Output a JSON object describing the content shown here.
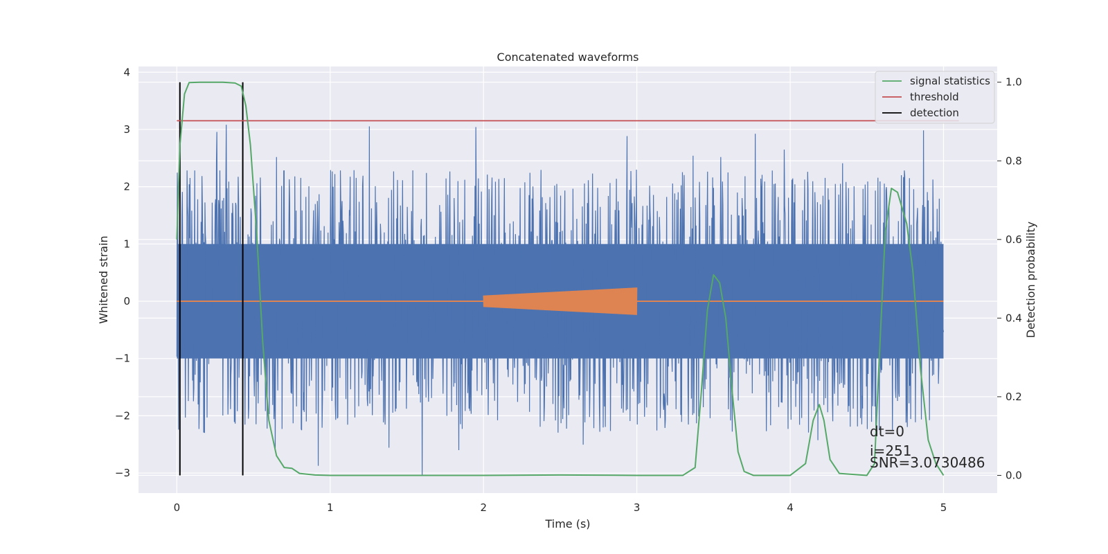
{
  "chart_data": {
    "type": "line",
    "title": "Concatenated waveforms",
    "xlabel": "Time (s)",
    "ylabel": "Whitened strain",
    "y2label": "Detection probability",
    "xlim": [
      -0.25,
      5.35
    ],
    "ylim": [
      -3.35,
      4.1
    ],
    "y2lim": [
      -0.045,
      1.04
    ],
    "xticks": [
      0,
      1,
      2,
      3,
      4,
      5
    ],
    "yticks": [
      -3,
      -2,
      -1,
      0,
      1,
      2,
      3,
      4
    ],
    "y2ticks": [
      0.0,
      0.2,
      0.4,
      0.6,
      0.8,
      1.0
    ],
    "grid": true,
    "legend_position": "top-right",
    "colors": {
      "strain": "#4c72b0",
      "injection": "#dd8452",
      "signal_statistics": "#55a868",
      "threshold": "#c44e52",
      "detection": "#000000",
      "background": "#eaeaf2",
      "grid": "#ffffff"
    },
    "series": [
      {
        "name": "signal statistics",
        "axis": "right",
        "x": [
          0.0,
          0.02,
          0.05,
          0.08,
          0.15,
          0.3,
          0.38,
          0.42,
          0.45,
          0.48,
          0.52,
          0.56,
          0.6,
          0.65,
          0.7,
          0.75,
          0.8,
          0.9,
          1.0,
          1.5,
          2.0,
          2.5,
          3.0,
          3.3,
          3.38,
          3.42,
          3.46,
          3.5,
          3.54,
          3.58,
          3.62,
          3.66,
          3.7,
          3.76,
          4.0,
          4.1,
          4.15,
          4.19,
          4.22,
          4.26,
          4.32,
          4.5,
          4.55,
          4.58,
          4.62,
          4.66,
          4.7,
          4.76,
          4.8,
          4.85,
          4.9,
          4.95,
          5.0
        ],
        "values": [
          0.6,
          0.84,
          0.97,
          0.999,
          1.0,
          1.0,
          0.998,
          0.99,
          0.94,
          0.84,
          0.62,
          0.34,
          0.14,
          0.05,
          0.02,
          0.018,
          0.005,
          0.001,
          0.0,
          0.0,
          0.0,
          0.001,
          0.0,
          0.0,
          0.02,
          0.21,
          0.42,
          0.51,
          0.49,
          0.4,
          0.22,
          0.06,
          0.01,
          0.0,
          0.0,
          0.03,
          0.14,
          0.18,
          0.14,
          0.04,
          0.005,
          0.0,
          0.03,
          0.29,
          0.62,
          0.73,
          0.72,
          0.64,
          0.52,
          0.27,
          0.09,
          0.03,
          0.0
        ]
      },
      {
        "name": "threshold",
        "axis": "right",
        "x": [
          0.0,
          5.1
        ],
        "values": [
          0.902,
          0.902
        ]
      },
      {
        "name": "detection",
        "axis": "right",
        "x_positions": [
          0.02,
          0.43
        ],
        "range": [
          0.0,
          1.0
        ]
      }
    ],
    "strain": {
      "axis": "left",
      "x_range": [
        0.0,
        5.0
      ],
      "core_amplitude": 1.0,
      "tail_low_min": -3.05
    },
    "injection": {
      "axis": "left",
      "x_range": [
        2.0,
        3.0
      ],
      "amplitude_start": 0.1,
      "amplitude_end": 0.24
    },
    "legend": [
      "signal statistics",
      "threshold",
      "detection"
    ],
    "annotations": [
      "dt=0",
      "i=251",
      "SNR=3.0730486"
    ]
  }
}
